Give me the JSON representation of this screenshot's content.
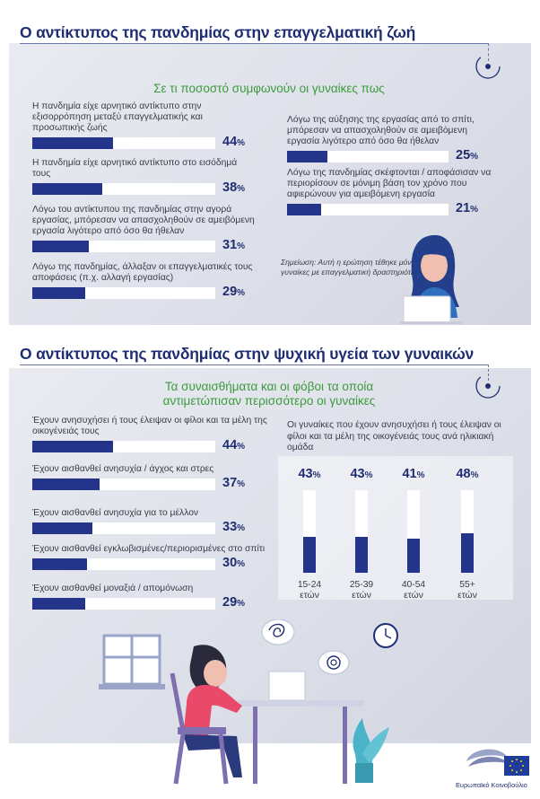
{
  "section1": {
    "title": "Ο αντίκτυπος της πανδημίας στην επαγγελματική ζωή",
    "subtitle": "Σε τι ποσοστό συμφωνούν οι γυναίκες πως",
    "note": "Σημείωση: Αυτή η ερώτηση τέθηκε μόνο σε γυναίκες με επαγγελματική δραστηριότητα"
  },
  "section2": {
    "title": "Ο αντίκτυπος της πανδημίας στην ψυχική υγεία των γυναικών",
    "subtitle_line1": "Τα συναισθήματα και οι φόβοι τα οποία",
    "subtitle_line2": "αντιμετώπισαν περισσότερο οι γυναίκες",
    "age_title": "Οι γυναίκες που έχουν ανησυχήσει ή τους έλειψαν οι φίλοι και τα μέλη της οικογένειάς τους ανά ηλικιακή ομάδα"
  },
  "logo_text": "Ευρωπαϊκό Κοινοβούλιο",
  "colors": {
    "title_blue": "#1f2e72",
    "bar_blue": "#24348a",
    "subtitle_green": "#3c9a3c",
    "panel_grey": "#e2e5ec"
  },
  "chart_data": [
    {
      "type": "bar",
      "orientation": "horizontal",
      "title": "Σε τι ποσοστό συμφωνούν οι γυναίκες πως",
      "unit": "%",
      "ylim": [
        0,
        100
      ],
      "categories": [
        "Η πανδημία είχε αρνητικό αντίκτυπο στην εξισορρόπηση μεταξύ επαγγελματικής και προσωπικής ζωής",
        "Η πανδημία είχε αρνητικό αντίκτυπο στο εισόδημά τους",
        "Λόγω του αντίκτυπου της πανδημίας στην αγορά εργασίας, μπόρεσαν να απασχοληθούν σε αμειβόμενη εργασία λιγότερο από όσο θα ήθελαν",
        "Λόγω της πανδημίας, άλλαξαν οι επαγγελματικές τους αποφάσεις (π.χ. αλλαγή εργασίας)",
        "Λόγω της αύξησης της εργασίας από το σπίτι, μπόρεσαν να απασχοληθούν σε αμειβόμενη εργασία λιγότερο από όσο θα ήθελαν",
        "Λόγω της πανδημίας σκέφτονται / αποφάσισαν να περιορίσουν σε μόνιμη βάση τον χρόνο που αφιερώνουν για αμειβόμενη εργασία"
      ],
      "values": [
        44,
        38,
        31,
        29,
        25,
        21
      ]
    },
    {
      "type": "bar",
      "orientation": "horizontal",
      "title": "Τα συναισθήματα και οι φόβοι τα οποία αντιμετώπισαν περισσότερο οι γυναίκες",
      "unit": "%",
      "ylim": [
        0,
        100
      ],
      "categories": [
        "Έχουν ανησυχήσει ή τους έλειψαν οι φίλοι και τα μέλη της οικογένειάς τους",
        "Έχουν αισθανθεί ανησυχία / άγχος και στρες",
        "Έχουν αισθανθεί ανησυχία για το μέλλον",
        "Έχουν αισθανθεί εγκλωβισμένες/περιορισμένες στο σπίτι",
        "Έχουν αισθανθεί μοναξιά / απομόνωση"
      ],
      "values": [
        44,
        37,
        33,
        30,
        29
      ]
    },
    {
      "type": "bar",
      "orientation": "vertical",
      "title": "Οι γυναίκες που έχουν ανησυχήσει ή τους έλειψαν οι φίλοι και τα μέλη της οικογένειάς τους ανά ηλικιακή ομάδα",
      "unit": "%",
      "ylim": [
        0,
        100
      ],
      "categories": [
        "15-24 ετών",
        "25-39 ετών",
        "40-54 ετών",
        "55+ ετών"
      ],
      "category_lines": [
        [
          "15-24",
          "ετών"
        ],
        [
          "25-39",
          "ετών"
        ],
        [
          "40-54",
          "ετών"
        ],
        [
          "55+",
          "ετών"
        ]
      ],
      "values": [
        43,
        43,
        41,
        48
      ]
    }
  ]
}
